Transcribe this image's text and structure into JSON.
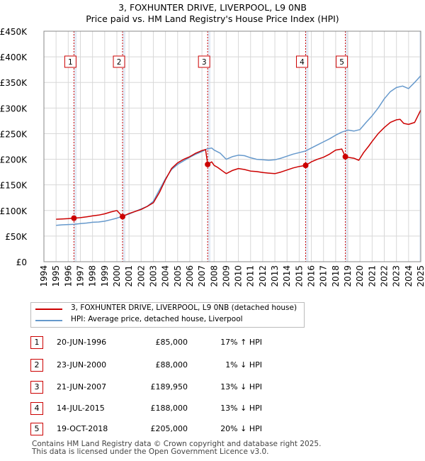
{
  "title_line1": "3, FOXHUNTER DRIVE, LIVERPOOL, L9 0NB",
  "title_line2": "Price paid vs. HM Land Registry's House Price Index (HPI)",
  "colors": {
    "red": "#cc0000",
    "blue": "#6699cc",
    "band": "#dde6f3",
    "grid": "#d8d8d8"
  },
  "chart_data": {
    "type": "line",
    "title": "Price paid vs. HM Land Registry's House Price Index (HPI)",
    "xlabel": "",
    "ylabel": "",
    "xlim": [
      1994,
      2025
    ],
    "ylim": [
      0,
      450000
    ],
    "x_ticks": [
      "1994",
      "1995",
      "1996",
      "1997",
      "1998",
      "1999",
      "2000",
      "2001",
      "2002",
      "2003",
      "2004",
      "2005",
      "2006",
      "2007",
      "2008",
      "2009",
      "2010",
      "2011",
      "2012",
      "2013",
      "2014",
      "2015",
      "2016",
      "2017",
      "2018",
      "2019",
      "2020",
      "2021",
      "2022",
      "2023",
      "2024",
      "2025"
    ],
    "y_ticks": [
      {
        "value": 0,
        "label": "£0"
      },
      {
        "value": 50000,
        "label": "£50K"
      },
      {
        "value": 100000,
        "label": "£100K"
      },
      {
        "value": 150000,
        "label": "£150K"
      },
      {
        "value": 200000,
        "label": "£200K"
      },
      {
        "value": 250000,
        "label": "£250K"
      },
      {
        "value": 300000,
        "label": "£300K"
      },
      {
        "value": 350000,
        "label": "£350K"
      },
      {
        "value": 400000,
        "label": "£400K"
      },
      {
        "value": 450000,
        "label": "£450K"
      }
    ],
    "series": [
      {
        "name": "3, FOXHUNTER DRIVE, LIVERPOOL, L9 0NB (detached house)",
        "color": "#cc0000",
        "points": [
          [
            1995.0,
            83000
          ],
          [
            1995.5,
            83500
          ],
          [
            1996.0,
            84000
          ],
          [
            1996.47,
            85000
          ],
          [
            1997.0,
            86000
          ],
          [
            1997.5,
            87500
          ],
          [
            1998.0,
            89500
          ],
          [
            1998.5,
            91000
          ],
          [
            1999.0,
            93500
          ],
          [
            1999.5,
            97000
          ],
          [
            2000.0,
            100000
          ],
          [
            2000.47,
            88000
          ],
          [
            2000.7,
            91000
          ],
          [
            2001.0,
            94000
          ],
          [
            2001.5,
            98000
          ],
          [
            2002.0,
            102000
          ],
          [
            2002.5,
            108000
          ],
          [
            2003.0,
            115000
          ],
          [
            2003.5,
            135000
          ],
          [
            2004.0,
            160000
          ],
          [
            2004.5,
            182000
          ],
          [
            2005.0,
            193000
          ],
          [
            2005.5,
            200000
          ],
          [
            2006.0,
            205000
          ],
          [
            2006.5,
            212000
          ],
          [
            2007.0,
            217000
          ],
          [
            2007.3,
            219000
          ],
          [
            2007.47,
            189950
          ],
          [
            2007.8,
            195000
          ],
          [
            2008.0,
            188000
          ],
          [
            2008.3,
            184000
          ],
          [
            2008.7,
            177000
          ],
          [
            2009.0,
            172000
          ],
          [
            2009.5,
            178000
          ],
          [
            2010.0,
            182000
          ],
          [
            2010.5,
            180000
          ],
          [
            2011.0,
            177000
          ],
          [
            2011.5,
            176000
          ],
          [
            2012.0,
            174000
          ],
          [
            2012.5,
            173000
          ],
          [
            2013.0,
            172000
          ],
          [
            2013.5,
            175000
          ],
          [
            2014.0,
            179000
          ],
          [
            2014.5,
            183000
          ],
          [
            2015.0,
            186000
          ],
          [
            2015.53,
            188000
          ],
          [
            2016.0,
            195000
          ],
          [
            2016.5,
            200000
          ],
          [
            2017.0,
            204000
          ],
          [
            2017.5,
            210000
          ],
          [
            2018.0,
            218000
          ],
          [
            2018.5,
            220000
          ],
          [
            2018.8,
            205000
          ],
          [
            2019.0,
            204000
          ],
          [
            2019.5,
            202000
          ],
          [
            2019.9,
            198000
          ],
          [
            2020.3,
            213000
          ],
          [
            2020.7,
            225000
          ],
          [
            2021.0,
            235000
          ],
          [
            2021.5,
            250000
          ],
          [
            2022.0,
            262000
          ],
          [
            2022.5,
            272000
          ],
          [
            2023.0,
            277000
          ],
          [
            2023.3,
            278000
          ],
          [
            2023.6,
            270000
          ],
          [
            2024.0,
            268000
          ],
          [
            2024.5,
            272000
          ],
          [
            2025.0,
            296000
          ]
        ]
      },
      {
        "name": "HPI: Average price, detached house, Liverpool",
        "color": "#6699cc",
        "points": [
          [
            1995.0,
            71000
          ],
          [
            1995.5,
            72000
          ],
          [
            1996.0,
            72500
          ],
          [
            1996.5,
            73000
          ],
          [
            1997.0,
            74500
          ],
          [
            1997.5,
            75500
          ],
          [
            1998.0,
            77000
          ],
          [
            1998.5,
            77500
          ],
          [
            1999.0,
            79000
          ],
          [
            1999.5,
            82000
          ],
          [
            2000.0,
            85000
          ],
          [
            2000.5,
            89000
          ],
          [
            2001.0,
            93000
          ],
          [
            2001.5,
            98000
          ],
          [
            2002.0,
            103000
          ],
          [
            2002.5,
            108000
          ],
          [
            2003.0,
            118000
          ],
          [
            2003.5,
            140000
          ],
          [
            2004.0,
            162000
          ],
          [
            2004.5,
            180000
          ],
          [
            2005.0,
            190000
          ],
          [
            2005.5,
            197000
          ],
          [
            2006.0,
            204000
          ],
          [
            2006.5,
            210000
          ],
          [
            2007.0,
            215000
          ],
          [
            2007.4,
            220000
          ],
          [
            2007.8,
            222000
          ],
          [
            2008.0,
            218000
          ],
          [
            2008.5,
            212000
          ],
          [
            2009.0,
            200000
          ],
          [
            2009.5,
            205000
          ],
          [
            2010.0,
            208000
          ],
          [
            2010.5,
            207000
          ],
          [
            2011.0,
            203000
          ],
          [
            2011.5,
            200000
          ],
          [
            2012.0,
            199000
          ],
          [
            2012.5,
            198000
          ],
          [
            2013.0,
            199000
          ],
          [
            2013.5,
            202000
          ],
          [
            2014.0,
            206000
          ],
          [
            2014.5,
            210000
          ],
          [
            2015.0,
            213000
          ],
          [
            2015.5,
            216000
          ],
          [
            2016.0,
            222000
          ],
          [
            2016.5,
            228000
          ],
          [
            2017.0,
            234000
          ],
          [
            2017.5,
            240000
          ],
          [
            2018.0,
            247000
          ],
          [
            2018.5,
            253000
          ],
          [
            2019.0,
            257000
          ],
          [
            2019.5,
            255000
          ],
          [
            2020.0,
            258000
          ],
          [
            2020.5,
            272000
          ],
          [
            2021.0,
            285000
          ],
          [
            2021.5,
            300000
          ],
          [
            2022.0,
            318000
          ],
          [
            2022.5,
            332000
          ],
          [
            2023.0,
            340000
          ],
          [
            2023.5,
            343000
          ],
          [
            2024.0,
            338000
          ],
          [
            2024.5,
            350000
          ],
          [
            2025.0,
            363000
          ]
        ]
      }
    ],
    "sales": [
      {
        "num": "1",
        "x": 1996.47,
        "price": 85000
      },
      {
        "num": "2",
        "x": 2000.47,
        "price": 88000
      },
      {
        "num": "3",
        "x": 2007.47,
        "price": 189950
      },
      {
        "num": "4",
        "x": 2015.53,
        "price": 188000
      },
      {
        "num": "5",
        "x": 2018.8,
        "price": 205000
      }
    ],
    "annotations": [
      "1",
      "2",
      "3",
      "4",
      "5"
    ]
  },
  "legend": {
    "red_label": "3, FOXHUNTER DRIVE, LIVERPOOL, L9 0NB (detached house)",
    "blue_label": "HPI: Average price, detached house, Liverpool"
  },
  "sales_table": [
    {
      "num": "1",
      "date": "20-JUN-1996",
      "price": "£85,000",
      "pct": "17% ↑ HPI"
    },
    {
      "num": "2",
      "date": "23-JUN-2000",
      "price": "£88,000",
      "pct": "1% ↓ HPI"
    },
    {
      "num": "3",
      "date": "21-JUN-2007",
      "price": "£189,950",
      "pct": "13% ↓ HPI"
    },
    {
      "num": "4",
      "date": "14-JUL-2015",
      "price": "£188,000",
      "pct": "13% ↓ HPI"
    },
    {
      "num": "5",
      "date": "19-OCT-2018",
      "price": "£205,000",
      "pct": "20% ↓ HPI"
    }
  ],
  "footer": {
    "line1": "Contains HM Land Registry data © Crown copyright and database right 2025.",
    "line2": "This data is licensed under the Open Government Licence v3.0."
  }
}
